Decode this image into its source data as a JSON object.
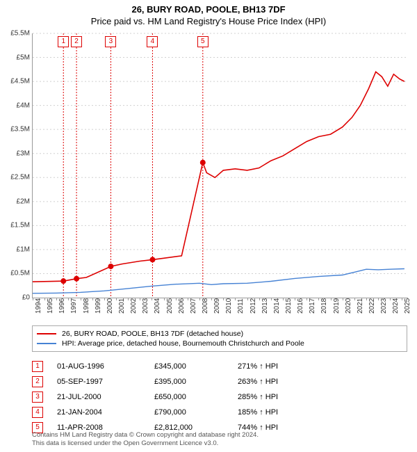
{
  "title_line1": "26, BURY ROAD, POOLE, BH13 7DF",
  "title_line2": "Price paid vs. HM Land Registry's House Price Index (HPI)",
  "chart": {
    "type": "line",
    "background_color": "#ffffff",
    "grid_color": "#d0d0d0",
    "x": {
      "min": 1994,
      "max": 2025.5,
      "tick_step": 1,
      "label_fontsize": 10
    },
    "y": {
      "min": 0,
      "max": 5500000,
      "tick_step": 500000,
      "label_prefix": "£",
      "label_suffix": "M",
      "label_fontsize": 10
    },
    "series": [
      {
        "name": "price_paid",
        "label": "26, BURY ROAD, POOLE, BH13 7DF (detached house)",
        "color": "#dd0000",
        "line_width": 1.6,
        "points": [
          [
            1994,
            330000
          ],
          [
            1996.6,
            345000
          ],
          [
            1997.7,
            395000
          ],
          [
            1998.5,
            420000
          ],
          [
            2000.56,
            650000
          ],
          [
            2001.5,
            700000
          ],
          [
            2003,
            760000
          ],
          [
            2004.06,
            790000
          ],
          [
            2005,
            820000
          ],
          [
            2006.5,
            870000
          ],
          [
            2008.28,
            2812000
          ],
          [
            2008.6,
            2600000
          ],
          [
            2009.3,
            2500000
          ],
          [
            2010,
            2650000
          ],
          [
            2011,
            2680000
          ],
          [
            2012,
            2650000
          ],
          [
            2013,
            2700000
          ],
          [
            2014,
            2850000
          ],
          [
            2015,
            2950000
          ],
          [
            2016,
            3100000
          ],
          [
            2017,
            3250000
          ],
          [
            2018,
            3350000
          ],
          [
            2019,
            3400000
          ],
          [
            2020,
            3550000
          ],
          [
            2020.8,
            3750000
          ],
          [
            2021.5,
            4000000
          ],
          [
            2022.2,
            4350000
          ],
          [
            2022.8,
            4700000
          ],
          [
            2023.3,
            4600000
          ],
          [
            2023.8,
            4400000
          ],
          [
            2024.3,
            4650000
          ],
          [
            2024.8,
            4550000
          ],
          [
            2025.2,
            4500000
          ]
        ]
      },
      {
        "name": "hpi",
        "label": "HPI: Average price, detached house, Bournemouth Christchurch and Poole",
        "color": "#4682d4",
        "line_width": 1.4,
        "points": [
          [
            1994,
            90000
          ],
          [
            1996,
            95000
          ],
          [
            1998,
            110000
          ],
          [
            2000,
            140000
          ],
          [
            2002,
            190000
          ],
          [
            2004,
            240000
          ],
          [
            2006,
            280000
          ],
          [
            2008,
            300000
          ],
          [
            2009,
            270000
          ],
          [
            2010,
            290000
          ],
          [
            2012,
            300000
          ],
          [
            2014,
            340000
          ],
          [
            2016,
            400000
          ],
          [
            2018,
            440000
          ],
          [
            2020,
            470000
          ],
          [
            2021,
            530000
          ],
          [
            2022,
            590000
          ],
          [
            2023,
            580000
          ],
          [
            2024,
            590000
          ],
          [
            2025.2,
            600000
          ]
        ]
      }
    ],
    "sales": [
      {
        "n": "1",
        "year": 1996.58,
        "date": "01-AUG-1996",
        "price": "£345,000",
        "hpi": "271% ↑ HPI"
      },
      {
        "n": "2",
        "year": 1997.68,
        "date": "05-SEP-1997",
        "price": "£395,000",
        "hpi": "263% ↑ HPI"
      },
      {
        "n": "3",
        "year": 2000.56,
        "date": "21-JUL-2000",
        "price": "£650,000",
        "hpi": "285% ↑ HPI"
      },
      {
        "n": "4",
        "year": 2004.06,
        "date": "21-JAN-2004",
        "price": "£790,000",
        "hpi": "185% ↑ HPI"
      },
      {
        "n": "5",
        "year": 2008.28,
        "date": "11-APR-2008",
        "price": "£2,812,000",
        "hpi": "744% ↑ HPI"
      }
    ],
    "sale_values": [
      345000,
      395000,
      650000,
      790000,
      2812000
    ],
    "marker_radius": 4
  },
  "footer_line1": "Contains HM Land Registry data © Crown copyright and database right 2024.",
  "footer_line2": "This data is licensed under the Open Government Licence v3.0."
}
